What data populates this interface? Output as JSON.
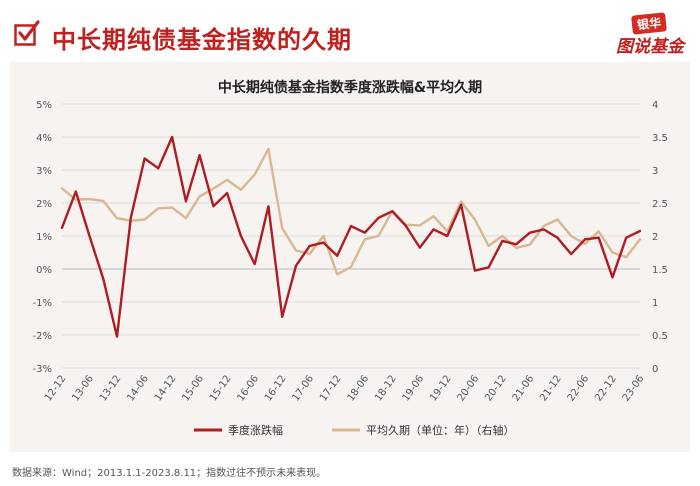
{
  "header": {
    "title": "中长期纯债基金指数的久期",
    "logo_top": "银华",
    "logo_bottom": "图说基金"
  },
  "footnote": "数据来源：Wind；2013.1.1-2023.8.11；指数过往不预示未来表现。",
  "colors": {
    "accent": "#c0201e",
    "series_return": "#b01c22",
    "series_duration": "#d8b792",
    "panel_bg": "#f7f3f1",
    "grid": "#dcdcdc"
  },
  "chart_data": {
    "type": "line",
    "title": "中长期纯债基金指数季度涨跌幅&平均久期",
    "categories": [
      "12-12",
      "13-03",
      "13-06",
      "13-09",
      "13-12",
      "14-03",
      "14-06",
      "14-09",
      "14-12",
      "15-03",
      "15-06",
      "15-09",
      "15-12",
      "16-03",
      "16-06",
      "16-09",
      "16-12",
      "17-03",
      "17-06",
      "17-09",
      "17-12",
      "18-03",
      "18-06",
      "18-09",
      "18-12",
      "19-03",
      "19-06",
      "19-09",
      "19-12",
      "20-03",
      "20-06",
      "20-09",
      "20-12",
      "21-03",
      "21-06",
      "21-09",
      "21-12",
      "22-03",
      "22-06",
      "22-09",
      "22-12",
      "23-03",
      "23-06"
    ],
    "x_tick_labels": [
      "12-12",
      "13-06",
      "13-12",
      "14-06",
      "14-12",
      "15-06",
      "15-12",
      "16-06",
      "16-12",
      "17-06",
      "17-12",
      "18-06",
      "18-12",
      "19-06",
      "19-12",
      "20-06",
      "20-12",
      "21-06",
      "21-12",
      "22-06",
      "22-12",
      "23-06"
    ],
    "y_left": {
      "min": -3,
      "max": 5,
      "step": 1,
      "tick_suffix": "%"
    },
    "y_right": {
      "min": 0,
      "max": 4,
      "step": 0.5
    },
    "series": [
      {
        "name": "季度涨跌幅",
        "axis": "left",
        "values": [
          1.25,
          2.35,
          1.0,
          -0.3,
          -2.05,
          1.55,
          3.35,
          3.05,
          4.0,
          2.05,
          3.45,
          1.9,
          2.3,
          1.0,
          0.15,
          1.9,
          -1.45,
          0.1,
          0.7,
          0.8,
          0.4,
          1.3,
          1.1,
          1.55,
          1.75,
          1.3,
          0.65,
          1.2,
          1.0,
          1.95,
          -0.05,
          0.05,
          0.85,
          0.75,
          1.1,
          1.2,
          0.95,
          0.45,
          0.9,
          0.95,
          -0.25,
          0.95,
          1.15
        ]
      },
      {
        "name": "平均久期（单位：年）（右轴）",
        "axis": "right",
        "values": [
          2.72,
          2.55,
          2.56,
          2.53,
          2.27,
          2.23,
          2.25,
          2.42,
          2.43,
          2.27,
          2.6,
          2.72,
          2.85,
          2.7,
          2.93,
          3.32,
          2.12,
          1.78,
          1.73,
          2.0,
          1.42,
          1.53,
          1.95,
          2.0,
          2.38,
          2.17,
          2.16,
          2.3,
          2.07,
          2.52,
          2.25,
          1.85,
          2.0,
          1.82,
          1.87,
          2.15,
          2.25,
          2.0,
          1.88,
          2.07,
          1.75,
          1.68,
          1.95
        ]
      }
    ],
    "legend_position": "bottom",
    "grid": "horizontal"
  }
}
